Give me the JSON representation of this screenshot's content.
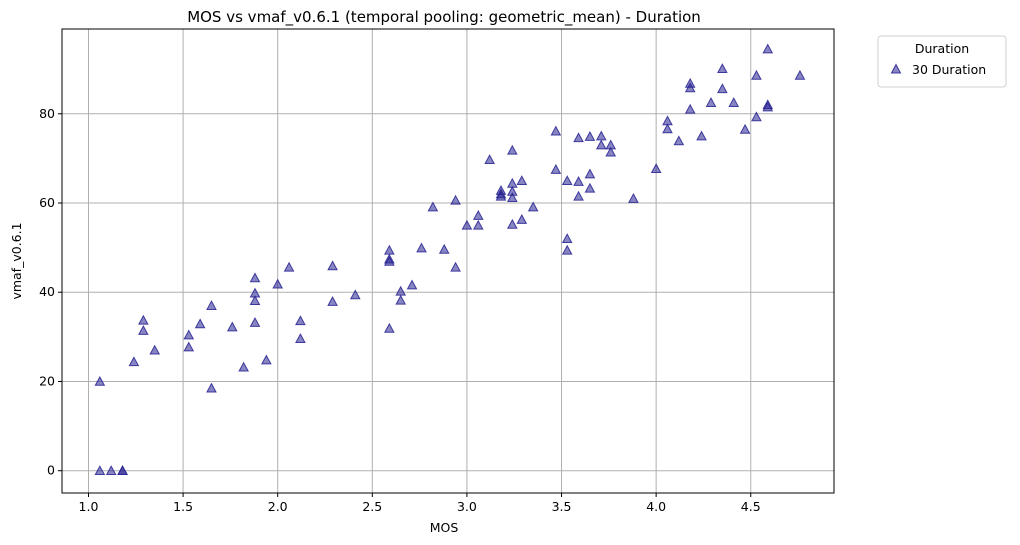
{
  "chart_data": {
    "type": "scatter",
    "title": "MOS vs vmaf_v0.6.1 (temporal pooling: geometric_mean) - Duration",
    "xlabel": "MOS",
    "ylabel": "vmaf_v0.6.1",
    "xlim": [
      0.86,
      4.94
    ],
    "ylim": [
      -5,
      99
    ],
    "xticks": [
      "1.0",
      "1.5",
      "2.0",
      "2.5",
      "3.0",
      "3.5",
      "4.0",
      "4.5"
    ],
    "xtick_values": [
      1.0,
      1.5,
      2.0,
      2.5,
      3.0,
      3.5,
      4.0,
      4.5
    ],
    "yticks": [
      "0",
      "20",
      "40",
      "60",
      "80"
    ],
    "ytick_values": [
      0,
      20,
      40,
      60,
      80
    ],
    "grid": true,
    "legend": {
      "title": "Duration",
      "placement": "outside-right-top",
      "entries": [
        "30 Duration"
      ]
    },
    "marker": "triangle-up",
    "color": "#262191",
    "series": [
      {
        "name": "30 Duration",
        "points": [
          [
            1.06,
            20.0
          ],
          [
            1.06,
            0.0
          ],
          [
            1.12,
            0.0
          ],
          [
            1.18,
            0.0
          ],
          [
            1.18,
            0.0
          ],
          [
            1.24,
            24.4
          ],
          [
            1.29,
            31.4
          ],
          [
            1.29,
            33.7
          ],
          [
            1.35,
            27.0
          ],
          [
            1.53,
            27.7
          ],
          [
            1.53,
            30.4
          ],
          [
            1.59,
            32.9
          ],
          [
            1.65,
            37.0
          ],
          [
            1.65,
            18.5
          ],
          [
            1.76,
            32.2
          ],
          [
            1.82,
            23.2
          ],
          [
            1.88,
            43.2
          ],
          [
            1.88,
            39.8
          ],
          [
            1.88,
            38.1
          ],
          [
            1.88,
            33.2
          ],
          [
            1.94,
            24.8
          ],
          [
            2.0,
            41.8
          ],
          [
            2.06,
            45.6
          ],
          [
            2.12,
            33.6
          ],
          [
            2.12,
            29.6
          ],
          [
            2.29,
            45.9
          ],
          [
            2.29,
            37.9
          ],
          [
            2.41,
            39.4
          ],
          [
            2.59,
            49.4
          ],
          [
            2.59,
            47.4
          ],
          [
            2.59,
            46.9
          ],
          [
            2.59,
            31.9
          ],
          [
            2.65,
            40.2
          ],
          [
            2.65,
            38.2
          ],
          [
            2.71,
            41.6
          ],
          [
            2.76,
            49.9
          ],
          [
            2.82,
            59.1
          ],
          [
            2.88,
            49.6
          ],
          [
            2.94,
            60.6
          ],
          [
            2.94,
            45.6
          ],
          [
            3.0,
            55.0
          ],
          [
            3.06,
            57.2
          ],
          [
            3.06,
            55.0
          ],
          [
            3.12,
            69.7
          ],
          [
            3.18,
            62.8
          ],
          [
            3.18,
            61.5
          ],
          [
            3.18,
            62.0
          ],
          [
            3.24,
            71.8
          ],
          [
            3.24,
            64.4
          ],
          [
            3.24,
            62.6
          ],
          [
            3.24,
            61.2
          ],
          [
            3.24,
            55.2
          ],
          [
            3.29,
            65.0
          ],
          [
            3.29,
            56.3
          ],
          [
            3.35,
            59.1
          ],
          [
            3.47,
            76.1
          ],
          [
            3.47,
            67.5
          ],
          [
            3.53,
            65.0
          ],
          [
            3.53,
            52.0
          ],
          [
            3.53,
            49.4
          ],
          [
            3.59,
            74.6
          ],
          [
            3.59,
            64.8
          ],
          [
            3.59,
            61.5
          ],
          [
            3.65,
            74.9
          ],
          [
            3.65,
            66.5
          ],
          [
            3.65,
            63.3
          ],
          [
            3.71,
            75.0
          ],
          [
            3.71,
            73.0
          ],
          [
            3.76,
            73.0
          ],
          [
            3.76,
            71.4
          ],
          [
            3.88,
            61.0
          ],
          [
            4.0,
            67.7
          ],
          [
            4.06,
            78.4
          ],
          [
            4.06,
            76.6
          ],
          [
            4.12,
            73.9
          ],
          [
            4.18,
            86.8
          ],
          [
            4.18,
            85.8
          ],
          [
            4.18,
            81.0
          ],
          [
            4.24,
            75.0
          ],
          [
            4.29,
            82.5
          ],
          [
            4.35,
            90.1
          ],
          [
            4.35,
            85.6
          ],
          [
            4.41,
            82.5
          ],
          [
            4.47,
            76.5
          ],
          [
            4.53,
            88.6
          ],
          [
            4.53,
            79.3
          ],
          [
            4.59,
            94.5
          ],
          [
            4.59,
            82.0
          ],
          [
            4.59,
            81.5
          ],
          [
            4.76,
            88.6
          ]
        ]
      }
    ]
  }
}
